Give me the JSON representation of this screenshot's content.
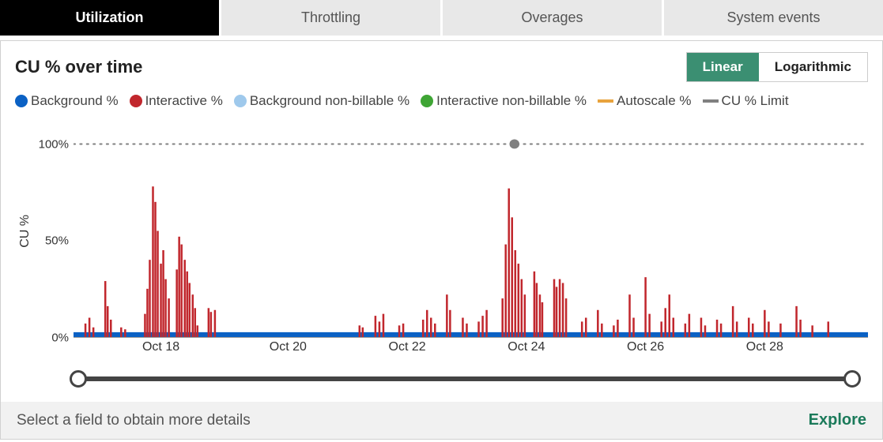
{
  "tabs": [
    {
      "label": "Utilization",
      "active": true
    },
    {
      "label": "Throttling",
      "active": false
    },
    {
      "label": "Overages",
      "active": false
    },
    {
      "label": "System events",
      "active": false
    }
  ],
  "chart": {
    "title": "CU % over time",
    "scale_buttons": {
      "linear": "Linear",
      "logarithmic": "Logarithmic",
      "active": "linear"
    },
    "y_label": "CU %",
    "type": "bar-timeseries",
    "ylim": [
      0,
      110
    ],
    "y_ticks": [
      {
        "value": 0,
        "label": "0%"
      },
      {
        "value": 50,
        "label": "50%"
      },
      {
        "value": 100,
        "label": "100%"
      }
    ],
    "limit_line": {
      "value": 100,
      "color": "#808080",
      "style": "dotted"
    },
    "limit_marker_x_pct": 55.5,
    "x_range_pct": [
      0,
      100
    ],
    "x_ticks": [
      {
        "pct": 11,
        "label": "Oct 18"
      },
      {
        "pct": 27,
        "label": "Oct 20"
      },
      {
        "pct": 42,
        "label": "Oct 22"
      },
      {
        "pct": 57,
        "label": "Oct 24"
      },
      {
        "pct": 72,
        "label": "Oct 26"
      },
      {
        "pct": 87,
        "label": "Oct 28"
      }
    ],
    "legend": [
      {
        "label": "Background %",
        "color": "#0b61c4",
        "shape": "circle"
      },
      {
        "label": "Interactive %",
        "color": "#c1272d",
        "shape": "circle"
      },
      {
        "label": "Background non-billable %",
        "color": "#9fc9ec",
        "shape": "circle"
      },
      {
        "label": "Interactive non-billable %",
        "color": "#3fa535",
        "shape": "circle"
      },
      {
        "label": "Autoscale %",
        "color": "#e8a33d",
        "shape": "line"
      },
      {
        "label": "CU % Limit",
        "color": "#808080",
        "shape": "line"
      }
    ],
    "colors": {
      "background_series": "#0b61c4",
      "interactive_series": "#c1272d",
      "plot_bg": "#ffffff",
      "axis": "#999999"
    },
    "background_baseline_height": 2.5,
    "interactive_bars": [
      {
        "x": 1.5,
        "v": 7
      },
      {
        "x": 2.0,
        "v": 10
      },
      {
        "x": 2.5,
        "v": 5
      },
      {
        "x": 4.0,
        "v": 29
      },
      {
        "x": 4.3,
        "v": 16
      },
      {
        "x": 4.7,
        "v": 9
      },
      {
        "x": 6.0,
        "v": 5
      },
      {
        "x": 6.5,
        "v": 4
      },
      {
        "x": 9.0,
        "v": 12
      },
      {
        "x": 9.3,
        "v": 25
      },
      {
        "x": 9.6,
        "v": 40
      },
      {
        "x": 10.0,
        "v": 78
      },
      {
        "x": 10.3,
        "v": 70
      },
      {
        "x": 10.6,
        "v": 55
      },
      {
        "x": 11.0,
        "v": 38
      },
      {
        "x": 11.3,
        "v": 45
      },
      {
        "x": 11.6,
        "v": 30
      },
      {
        "x": 12.0,
        "v": 20
      },
      {
        "x": 13.0,
        "v": 35
      },
      {
        "x": 13.3,
        "v": 52
      },
      {
        "x": 13.6,
        "v": 48
      },
      {
        "x": 14.0,
        "v": 40
      },
      {
        "x": 14.3,
        "v": 34
      },
      {
        "x": 14.6,
        "v": 28
      },
      {
        "x": 15.0,
        "v": 22
      },
      {
        "x": 15.3,
        "v": 15
      },
      {
        "x": 15.6,
        "v": 6
      },
      {
        "x": 17.0,
        "v": 15
      },
      {
        "x": 17.3,
        "v": 13
      },
      {
        "x": 17.8,
        "v": 14
      },
      {
        "x": 36.0,
        "v": 6
      },
      {
        "x": 36.4,
        "v": 5
      },
      {
        "x": 38.0,
        "v": 11
      },
      {
        "x": 38.5,
        "v": 8
      },
      {
        "x": 39.0,
        "v": 12
      },
      {
        "x": 41.0,
        "v": 6
      },
      {
        "x": 41.5,
        "v": 7
      },
      {
        "x": 44.0,
        "v": 9
      },
      {
        "x": 44.5,
        "v": 14
      },
      {
        "x": 45.0,
        "v": 10
      },
      {
        "x": 45.5,
        "v": 7
      },
      {
        "x": 47.0,
        "v": 22
      },
      {
        "x": 47.4,
        "v": 14
      },
      {
        "x": 49.0,
        "v": 10
      },
      {
        "x": 49.5,
        "v": 7
      },
      {
        "x": 51.0,
        "v": 8
      },
      {
        "x": 51.5,
        "v": 11
      },
      {
        "x": 52.0,
        "v": 14
      },
      {
        "x": 54.0,
        "v": 20
      },
      {
        "x": 54.4,
        "v": 48
      },
      {
        "x": 54.8,
        "v": 77
      },
      {
        "x": 55.2,
        "v": 62
      },
      {
        "x": 55.6,
        "v": 45
      },
      {
        "x": 56.0,
        "v": 38
      },
      {
        "x": 56.4,
        "v": 30
      },
      {
        "x": 56.8,
        "v": 22
      },
      {
        "x": 58.0,
        "v": 34
      },
      {
        "x": 58.3,
        "v": 28
      },
      {
        "x": 58.7,
        "v": 22
      },
      {
        "x": 59.0,
        "v": 18
      },
      {
        "x": 60.5,
        "v": 30
      },
      {
        "x": 60.8,
        "v": 26
      },
      {
        "x": 61.2,
        "v": 30
      },
      {
        "x": 61.6,
        "v": 28
      },
      {
        "x": 62.0,
        "v": 20
      },
      {
        "x": 64.0,
        "v": 8
      },
      {
        "x": 64.5,
        "v": 10
      },
      {
        "x": 66.0,
        "v": 14
      },
      {
        "x": 66.5,
        "v": 7
      },
      {
        "x": 68.0,
        "v": 6
      },
      {
        "x": 68.5,
        "v": 9
      },
      {
        "x": 70.0,
        "v": 22
      },
      {
        "x": 70.5,
        "v": 10
      },
      {
        "x": 72.0,
        "v": 31
      },
      {
        "x": 72.5,
        "v": 12
      },
      {
        "x": 74.0,
        "v": 8
      },
      {
        "x": 74.5,
        "v": 15
      },
      {
        "x": 75.0,
        "v": 22
      },
      {
        "x": 75.5,
        "v": 10
      },
      {
        "x": 77.0,
        "v": 7
      },
      {
        "x": 77.5,
        "v": 12
      },
      {
        "x": 79.0,
        "v": 10
      },
      {
        "x": 79.5,
        "v": 6
      },
      {
        "x": 81.0,
        "v": 9
      },
      {
        "x": 81.5,
        "v": 7
      },
      {
        "x": 83.0,
        "v": 16
      },
      {
        "x": 83.5,
        "v": 8
      },
      {
        "x": 85.0,
        "v": 10
      },
      {
        "x": 85.5,
        "v": 7
      },
      {
        "x": 87.0,
        "v": 14
      },
      {
        "x": 87.5,
        "v": 8
      },
      {
        "x": 89.0,
        "v": 7
      },
      {
        "x": 91.0,
        "v": 16
      },
      {
        "x": 91.5,
        "v": 9
      },
      {
        "x": 93.0,
        "v": 6
      },
      {
        "x": 95.0,
        "v": 8
      }
    ]
  },
  "range_slider": {
    "start_pct": 0,
    "end_pct": 100
  },
  "footer": {
    "hint": "Select a field to obtain more details",
    "explore": "Explore"
  }
}
